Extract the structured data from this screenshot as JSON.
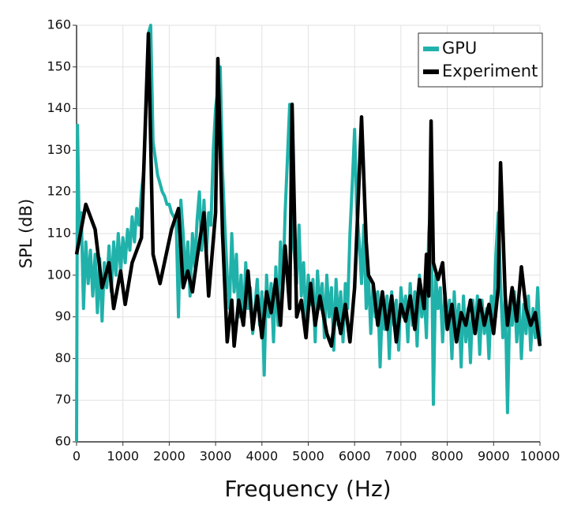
{
  "chart_data": {
    "type": "line",
    "xlabel": "Frequency (Hz)",
    "ylabel": "SPL (dB)",
    "xlim": [
      0,
      10000
    ],
    "ylim": [
      60,
      160
    ],
    "xticks": [
      0,
      1000,
      2000,
      3000,
      4000,
      5000,
      6000,
      7000,
      8000,
      9000,
      10000
    ],
    "yticks": [
      60,
      70,
      80,
      90,
      100,
      110,
      120,
      130,
      140,
      150,
      160
    ],
    "grid": true,
    "legend": "upper right",
    "series": [
      {
        "name": "GPU",
        "color": "#20b2aa",
        "x": [
          0,
          20,
          60,
          100,
          150,
          200,
          250,
          300,
          350,
          400,
          450,
          500,
          550,
          600,
          650,
          700,
          750,
          800,
          850,
          900,
          950,
          1000,
          1050,
          1100,
          1150,
          1200,
          1250,
          1300,
          1350,
          1400,
          1450,
          1500,
          1550,
          1600,
          1650,
          1700,
          1750,
          1800,
          1850,
          1900,
          1950,
          2000,
          2050,
          2100,
          2150,
          2200,
          2250,
          2300,
          2350,
          2400,
          2450,
          2500,
          2550,
          2600,
          2650,
          2700,
          2750,
          2800,
          2850,
          2900,
          2950,
          3000,
          3050,
          3100,
          3150,
          3200,
          3250,
          3300,
          3350,
          3400,
          3450,
          3500,
          3550,
          3600,
          3650,
          3700,
          3750,
          3800,
          3900,
          3950,
          4000,
          4050,
          4100,
          4150,
          4200,
          4250,
          4300,
          4350,
          4400,
          4450,
          4500,
          4550,
          4600,
          4650,
          4700,
          4750,
          4800,
          4850,
          4900,
          4950,
          5000,
          5050,
          5100,
          5150,
          5200,
          5250,
          5300,
          5350,
          5400,
          5450,
          5500,
          5550,
          5600,
          5650,
          5700,
          5750,
          5800,
          5850,
          5900,
          5950,
          6000,
          6050,
          6100,
          6150,
          6200,
          6250,
          6300,
          6350,
          6400,
          6450,
          6500,
          6550,
          6600,
          6650,
          6700,
          6750,
          6800,
          6850,
          6900,
          6950,
          7000,
          7050,
          7100,
          7150,
          7200,
          7250,
          7300,
          7350,
          7400,
          7450,
          7500,
          7550,
          7600,
          7650,
          7700,
          7750,
          7800,
          7850,
          7900,
          7950,
          8000,
          8050,
          8100,
          8150,
          8200,
          8250,
          8300,
          8350,
          8400,
          8450,
          8500,
          8550,
          8600,
          8650,
          8700,
          8750,
          8800,
          8850,
          8900,
          8950,
          9000,
          9050,
          9100,
          9150,
          9200,
          9250,
          9300,
          9350,
          9400,
          9450,
          9500,
          9550,
          9600,
          9650,
          9700,
          9750,
          9800,
          9850,
          9900,
          9950,
          10000
        ],
        "values": [
          60,
          136,
          108,
          115,
          92,
          108,
          98,
          106,
          95,
          105,
          91,
          104,
          89,
          103,
          97,
          107,
          96,
          108,
          100,
          110,
          101,
          109,
          103,
          111,
          106,
          114,
          108,
          116,
          112,
          120,
          125,
          140,
          158,
          160,
          132,
          128,
          124,
          122,
          120,
          119,
          117,
          117,
          115,
          114,
          113,
          90,
          118,
          110,
          99,
          108,
          95,
          110,
          102,
          113,
          120,
          106,
          118,
          105,
          115,
          112,
          130,
          140,
          145,
          150,
          125,
          112,
          100,
          92,
          110,
          96,
          105,
          90,
          100,
          88,
          103,
          92,
          97,
          86,
          99,
          88,
          96,
          76,
          100,
          90,
          98,
          84,
          102,
          88,
          108,
          96,
          115,
          128,
          141,
          110,
          105,
          98,
          112,
          95,
          103,
          88,
          100,
          93,
          99,
          84,
          101,
          92,
          98,
          85,
          100,
          90,
          97,
          82,
          99,
          88,
          96,
          84,
          98,
          92,
          110,
          122,
          135,
          115,
          108,
          98,
          112,
          92,
          100,
          86,
          98,
          90,
          96,
          78,
          93,
          87,
          95,
          80,
          96,
          88,
          94,
          82,
          97,
          90,
          95,
          84,
          98,
          88,
          96,
          83,
          100,
          90,
          96,
          85,
          110,
          118,
          69,
          100,
          92,
          97,
          84,
          96,
          88,
          94,
          80,
          96,
          86,
          93,
          78,
          95,
          84,
          92,
          79,
          94,
          87,
          95,
          81,
          94,
          86,
          92,
          80,
          95,
          88,
          105,
          115,
          98,
          85,
          95,
          67,
          93,
          88,
          96,
          84,
          94,
          80,
          93,
          86,
          95,
          82,
          92,
          85,
          97,
          84
        ]
      },
      {
        "name": "Experiment",
        "color": "#000000",
        "x": [
          0,
          200,
          400,
          550,
          700,
          800,
          950,
          1050,
          1200,
          1300,
          1400,
          1550,
          1650,
          1800,
          2050,
          2200,
          2300,
          2400,
          2500,
          2600,
          2750,
          2850,
          3000,
          3050,
          3150,
          3250,
          3350,
          3400,
          3500,
          3600,
          3700,
          3800,
          3900,
          4000,
          4100,
          4200,
          4300,
          4400,
          4500,
          4600,
          4650,
          4750,
          4850,
          4950,
          5050,
          5150,
          5250,
          5400,
          5500,
          5600,
          5700,
          5800,
          5900,
          6000,
          6050,
          6150,
          6250,
          6300,
          6400,
          6500,
          6600,
          6700,
          6800,
          6900,
          7000,
          7100,
          7200,
          7300,
          7400,
          7500,
          7550,
          7600,
          7650,
          7700,
          7800,
          7900,
          8000,
          8100,
          8200,
          8300,
          8400,
          8500,
          8600,
          8700,
          8800,
          8900,
          9000,
          9100,
          9150,
          9250,
          9300,
          9400,
          9500,
          9600,
          9700,
          9800,
          9900,
          10000
        ],
        "values": [
          105,
          117,
          111,
          97,
          103,
          92,
          101,
          93,
          103,
          106,
          109,
          158,
          105,
          98,
          111,
          116,
          97,
          101,
          96,
          104,
          115,
          95,
          115,
          152,
          110,
          84,
          94,
          83,
          94,
          88,
          101,
          87,
          95,
          85,
          96,
          91,
          99,
          88,
          107,
          92,
          141,
          90,
          94,
          85,
          98,
          88,
          95,
          86,
          83,
          92,
          86,
          93,
          84,
          97,
          110,
          138,
          108,
          100,
          98,
          88,
          96,
          87,
          95,
          84,
          93,
          89,
          95,
          87,
          99,
          92,
          105,
          95,
          137,
          103,
          99,
          103,
          87,
          93,
          84,
          91,
          88,
          94,
          86,
          94,
          88,
          93,
          86,
          97,
          127,
          95,
          88,
          97,
          89,
          102,
          92,
          88,
          91,
          83
        ]
      }
    ]
  }
}
